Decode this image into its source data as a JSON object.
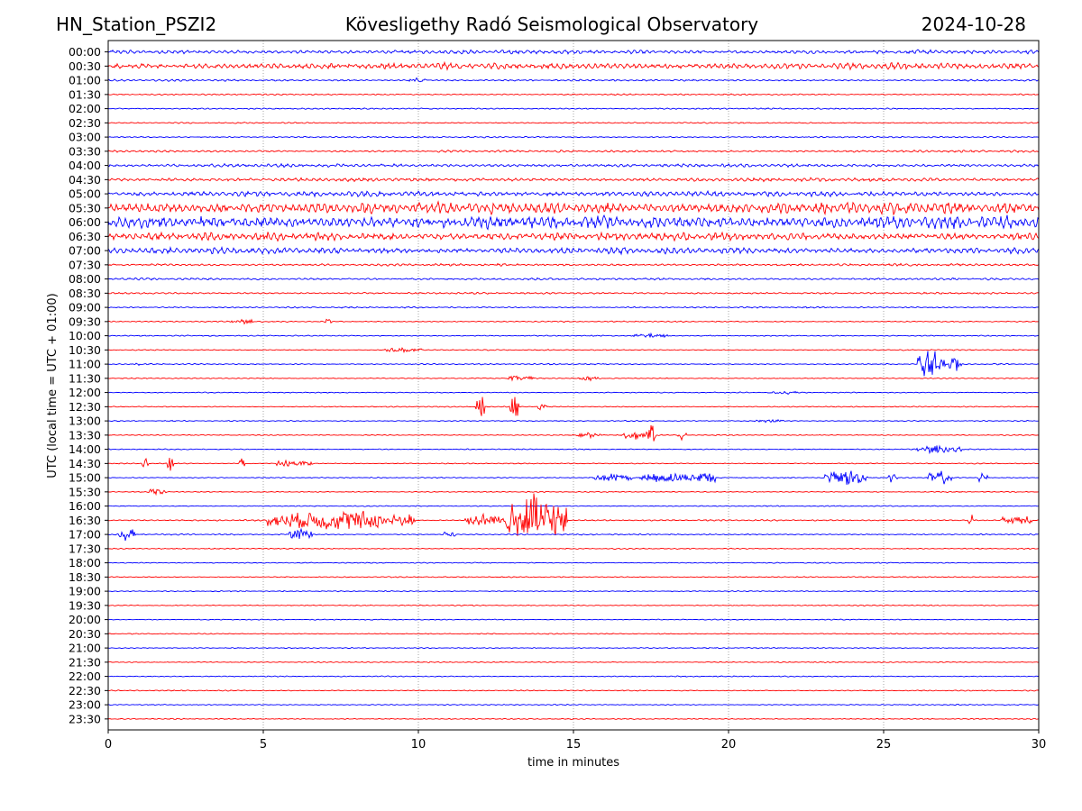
{
  "header": {
    "station": "HN_Station_PSZI2",
    "title": "Kövesligethy Radó Seismological Observatory",
    "date": "2024-10-28"
  },
  "chart_data": {
    "type": "line",
    "title": "Kövesligethy Radó Seismological Observatory",
    "xlabel": "time in minutes",
    "ylabel": "UTC (local time = UTC + 01:00)",
    "xlim": [
      0,
      30
    ],
    "x_ticks": [
      "0",
      "5",
      "10",
      "15",
      "20",
      "25",
      "30"
    ],
    "grid": "vertical dotted lines at x ticks",
    "colors": {
      "odd_rows": "#0000ff",
      "even_rows": "#ff0000",
      "axes": "#000000",
      "grid": "#808080"
    },
    "rows": [
      {
        "label": "00:00",
        "amp": 2.2,
        "bursts": []
      },
      {
        "label": "00:30",
        "amp": 3.5,
        "bursts": []
      },
      {
        "label": "01:00",
        "amp": 1.0,
        "bursts": [
          [
            10.0,
            0.3,
            3
          ]
        ]
      },
      {
        "label": "01:30",
        "amp": 0.8,
        "bursts": []
      },
      {
        "label": "02:00",
        "amp": 0.8,
        "bursts": []
      },
      {
        "label": "02:30",
        "amp": 0.7,
        "bursts": []
      },
      {
        "label": "03:00",
        "amp": 0.8,
        "bursts": []
      },
      {
        "label": "03:30",
        "amp": 1.2,
        "bursts": []
      },
      {
        "label": "04:00",
        "amp": 1.8,
        "bursts": []
      },
      {
        "label": "04:30",
        "amp": 2.0,
        "bursts": []
      },
      {
        "label": "05:00",
        "amp": 3.0,
        "bursts": []
      },
      {
        "label": "05:30",
        "amp": 6.5,
        "bursts": []
      },
      {
        "label": "06:00",
        "amp": 7.0,
        "bursts": []
      },
      {
        "label": "06:30",
        "amp": 4.5,
        "bursts": []
      },
      {
        "label": "07:00",
        "amp": 3.5,
        "bursts": []
      },
      {
        "label": "07:30",
        "amp": 1.3,
        "bursts": []
      },
      {
        "label": "08:00",
        "amp": 1.2,
        "bursts": []
      },
      {
        "label": "08:30",
        "amp": 1.0,
        "bursts": []
      },
      {
        "label": "09:00",
        "amp": 0.8,
        "bursts": []
      },
      {
        "label": "09:30",
        "amp": 0.7,
        "bursts": [
          [
            4.3,
            0.4,
            3
          ],
          [
            7.1,
            0.1,
            5
          ]
        ]
      },
      {
        "label": "10:00",
        "amp": 0.7,
        "bursts": [
          [
            17.5,
            0.6,
            3
          ]
        ]
      },
      {
        "label": "10:30",
        "amp": 0.6,
        "bursts": [
          [
            9.5,
            0.6,
            3
          ]
        ]
      },
      {
        "label": "11:00",
        "amp": 0.7,
        "bursts": [
          [
            0.95,
            0.05,
            7
          ],
          [
            26.4,
            0.3,
            22
          ],
          [
            26.8,
            0.2,
            10
          ],
          [
            27.3,
            0.2,
            14
          ]
        ]
      },
      {
        "label": "11:30",
        "amp": 0.6,
        "bursts": [
          [
            13.3,
            0.4,
            4
          ],
          [
            15.5,
            0.3,
            4
          ]
        ]
      },
      {
        "label": "12:00",
        "amp": 0.6,
        "bursts": [
          [
            21.8,
            0.5,
            2
          ]
        ]
      },
      {
        "label": "12:30",
        "amp": 0.6,
        "bursts": [
          [
            12.0,
            0.15,
            18
          ],
          [
            13.1,
            0.15,
            20
          ],
          [
            14.0,
            0.15,
            7
          ]
        ]
      },
      {
        "label": "13:00",
        "amp": 0.6,
        "bursts": [
          [
            21.3,
            0.5,
            2
          ]
        ]
      },
      {
        "label": "13:30",
        "amp": 0.6,
        "bursts": [
          [
            15.5,
            0.4,
            4
          ],
          [
            17.0,
            0.4,
            6
          ],
          [
            17.5,
            0.15,
            16
          ],
          [
            18.5,
            0.15,
            8
          ]
        ]
      },
      {
        "label": "14:00",
        "amp": 0.6,
        "bursts": [
          [
            26.8,
            0.8,
            5
          ]
        ]
      },
      {
        "label": "14:30",
        "amp": 0.6,
        "bursts": [
          [
            1.2,
            0.1,
            7
          ],
          [
            2.0,
            0.1,
            10
          ],
          [
            4.3,
            0.1,
            9
          ],
          [
            6.0,
            0.6,
            5
          ]
        ]
      },
      {
        "label": "15:00",
        "amp": 0.6,
        "bursts": [
          [
            16.2,
            0.7,
            5
          ],
          [
            18.0,
            0.9,
            7
          ],
          [
            19.3,
            0.3,
            9
          ],
          [
            23.8,
            0.7,
            10
          ],
          [
            25.3,
            0.15,
            9
          ],
          [
            26.8,
            0.4,
            10
          ],
          [
            28.2,
            0.15,
            9
          ]
        ]
      },
      {
        "label": "15:30",
        "amp": 0.6,
        "bursts": [
          [
            1.6,
            0.3,
            5
          ]
        ]
      },
      {
        "label": "16:00",
        "amp": 0.6,
        "bursts": []
      },
      {
        "label": "16:30",
        "amp": 0.8,
        "bursts": [
          [
            7.5,
            2.4,
            14
          ],
          [
            12.2,
            0.7,
            9
          ],
          [
            13.8,
            1.0,
            34
          ],
          [
            27.8,
            0.1,
            10
          ],
          [
            29.3,
            0.5,
            7
          ]
        ]
      },
      {
        "label": "17:00",
        "amp": 0.8,
        "bursts": [
          [
            0.6,
            0.3,
            9
          ],
          [
            6.2,
            0.4,
            8
          ],
          [
            11.0,
            0.2,
            5
          ]
        ]
      },
      {
        "label": "17:30",
        "amp": 0.6,
        "bursts": []
      },
      {
        "label": "18:00",
        "amp": 0.6,
        "bursts": []
      },
      {
        "label": "18:30",
        "amp": 0.6,
        "bursts": []
      },
      {
        "label": "19:00",
        "amp": 0.6,
        "bursts": []
      },
      {
        "label": "19:30",
        "amp": 0.6,
        "bursts": []
      },
      {
        "label": "20:00",
        "amp": 0.6,
        "bursts": []
      },
      {
        "label": "20:30",
        "amp": 0.6,
        "bursts": []
      },
      {
        "label": "21:00",
        "amp": 0.6,
        "bursts": []
      },
      {
        "label": "21:30",
        "amp": 0.6,
        "bursts": []
      },
      {
        "label": "22:00",
        "amp": 0.6,
        "bursts": []
      },
      {
        "label": "22:30",
        "amp": 0.6,
        "bursts": []
      },
      {
        "label": "23:00",
        "amp": 0.6,
        "bursts": []
      },
      {
        "label": "23:30",
        "amp": 0.6,
        "bursts": []
      }
    ]
  }
}
